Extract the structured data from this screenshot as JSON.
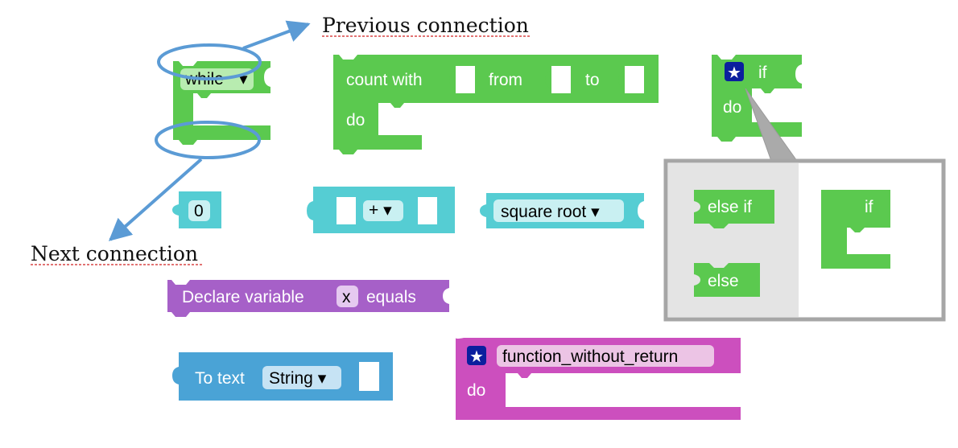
{
  "annotations": {
    "previous": "Previous connection",
    "next": "Next connection"
  },
  "blocks": {
    "while": {
      "dropdown": "while",
      "arrow": "▾"
    },
    "count": {
      "label": "count with",
      "from": "from",
      "to": "to",
      "do": "do"
    },
    "if": {
      "label": "if",
      "do": "do"
    },
    "number": {
      "value": "0"
    },
    "arith": {
      "op": "+ ▾"
    },
    "sqrt": {
      "dropdown": "square root ▾"
    },
    "declare": {
      "label": "Declare variable",
      "var": "x",
      "equals": "equals"
    },
    "totext": {
      "label": "To text",
      "dropdown": "String ▾"
    },
    "func": {
      "name": "function_without_return",
      "do": "do"
    }
  },
  "mutator": {
    "else_if": "else if",
    "else": "else",
    "if": "if"
  },
  "colors": {
    "logic_green": "#5bc94f",
    "math_teal": "#55cdd3",
    "variable_purple": "#a660c8",
    "text_blue": "#4aa3d6",
    "function_magenta": "#cc4fbe",
    "annotation_blue": "#5b9bd5",
    "mutator_bg": "#e4e4e4",
    "mutator_border": "#a6a6a6"
  }
}
